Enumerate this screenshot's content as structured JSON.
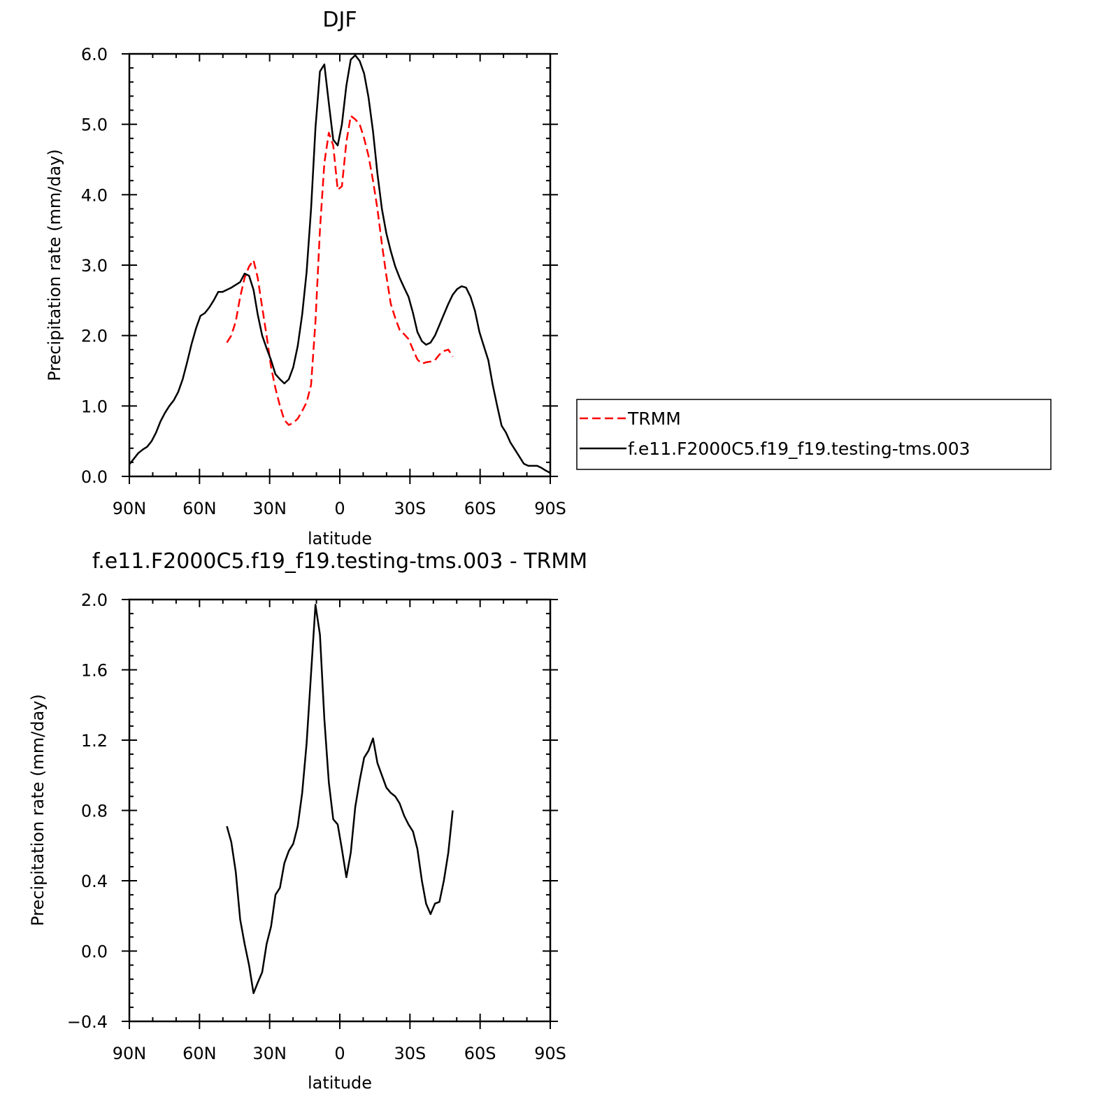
{
  "chart_data": [
    {
      "type": "line",
      "title": "DJF",
      "xlabel": "latitude",
      "ylabel": "Precipitation rate (mm/day)",
      "xlim": [
        -90,
        90
      ],
      "ylim": [
        0,
        6
      ],
      "x_ticks": [
        -90,
        -60,
        -30,
        0,
        30,
        60,
        90
      ],
      "x_tick_labels": [
        "90N",
        "60N",
        "30N",
        "0",
        "30S",
        "60S",
        "90S"
      ],
      "y_ticks": [
        0,
        1,
        2,
        3,
        4,
        5,
        6
      ],
      "y_tick_labels": [
        "0.0",
        "1.0",
        "2.0",
        "3.0",
        "4.0",
        "5.0",
        "6.0"
      ],
      "legend": "outside-right",
      "series": [
        {
          "name": "TRMM",
          "color": "#ff0000",
          "dash": "dashed",
          "x": [
            -48.3,
            -46.4,
            -44.5,
            -42.6,
            -40.7,
            -38.8,
            -36.9,
            -35.1,
            -33.2,
            -31.3,
            -29.4,
            -27.5,
            -25.6,
            -23.7,
            -21.8,
            -19.9,
            -18,
            -16.1,
            -14.2,
            -12.3,
            -10.4,
            -8.5,
            -6.6,
            -4.7,
            -2.8,
            -0.9,
            0.9,
            2.8,
            4.7,
            6.6,
            8.5,
            10.4,
            12.3,
            14.2,
            16.1,
            18,
            19.9,
            21.8,
            23.7,
            25.6,
            27.5,
            29.4,
            31.3,
            33.2,
            35.1,
            36.9,
            38.8,
            40.7,
            42.6,
            44.5,
            46.4,
            48.3
          ],
          "y": [
            1.9,
            2.0,
            2.2,
            2.55,
            2.82,
            2.98,
            3.07,
            2.82,
            2.4,
            2.0,
            1.55,
            1.25,
            1.0,
            0.8,
            0.73,
            0.76,
            0.82,
            0.93,
            1.05,
            1.3,
            2.2,
            3.5,
            4.45,
            4.88,
            4.7,
            4.07,
            4.12,
            4.75,
            5.12,
            5.07,
            5.0,
            4.8,
            4.55,
            4.2,
            3.8,
            3.3,
            2.85,
            2.45,
            2.25,
            2.08,
            2.02,
            1.95,
            1.8,
            1.66,
            1.6,
            1.62,
            1.63,
            1.65,
            1.73,
            1.78,
            1.8,
            1.7
          ]
        },
        {
          "name": "f.e11.F2000C5.f19_f19.testing-tms.003",
          "color": "#000000",
          "dash": "solid",
          "x": [
            -90,
            -88.1,
            -86.2,
            -84.3,
            -82.4,
            -80.5,
            -78.6,
            -76.7,
            -74.8,
            -72.9,
            -71,
            -69.1,
            -67.2,
            -65.3,
            -63.4,
            -61.5,
            -59.6,
            -57.7,
            -55.8,
            -53.9,
            -52,
            -50.1,
            -48.3,
            -46.4,
            -44.5,
            -42.6,
            -40.7,
            -38.8,
            -36.9,
            -35.1,
            -33.2,
            -31.3,
            -29.4,
            -27.5,
            -25.6,
            -23.7,
            -21.8,
            -19.9,
            -18,
            -16.1,
            -14.2,
            -12.3,
            -10.4,
            -8.5,
            -6.6,
            -4.7,
            -2.8,
            -0.9,
            0.9,
            2.8,
            4.7,
            6.6,
            8.5,
            10.4,
            12.3,
            14.2,
            16.1,
            18,
            19.9,
            21.8,
            23.7,
            25.6,
            27.5,
            29.4,
            31.3,
            33.2,
            35.1,
            36.9,
            38.8,
            40.7,
            42.6,
            44.5,
            46.4,
            48.3,
            50.2,
            52.1,
            54,
            55.9,
            57.8,
            59.7,
            61.6,
            63.5,
            65.4,
            67.3,
            69.2,
            71.1,
            73,
            74.9,
            76.8,
            78.7,
            80.6,
            82.5,
            84.4,
            86.3,
            88.2,
            90
          ],
          "y": [
            0.17,
            0.25,
            0.33,
            0.38,
            0.42,
            0.5,
            0.62,
            0.78,
            0.9,
            1.0,
            1.08,
            1.2,
            1.38,
            1.62,
            1.88,
            2.1,
            2.28,
            2.32,
            2.4,
            2.5,
            2.62,
            2.62,
            2.65,
            2.68,
            2.72,
            2.76,
            2.88,
            2.85,
            2.65,
            2.3,
            2.0,
            1.82,
            1.65,
            1.45,
            1.38,
            1.32,
            1.38,
            1.55,
            1.85,
            2.3,
            2.9,
            3.8,
            4.95,
            5.75,
            5.85,
            5.3,
            4.78,
            4.7,
            5.0,
            5.55,
            5.92,
            5.98,
            5.9,
            5.72,
            5.38,
            4.9,
            4.3,
            3.8,
            3.45,
            3.2,
            2.98,
            2.82,
            2.68,
            2.55,
            2.32,
            2.05,
            1.92,
            1.87,
            1.9,
            2.0,
            2.15,
            2.3,
            2.45,
            2.58,
            2.66,
            2.7,
            2.68,
            2.55,
            2.35,
            2.05,
            1.85,
            1.65,
            1.3,
            1.0,
            0.72,
            0.62,
            0.48,
            0.38,
            0.28,
            0.18,
            0.15,
            0.15,
            0.15,
            0.12,
            0.08,
            0.05
          ]
        }
      ]
    },
    {
      "type": "line",
      "title": "f.e11.F2000C5.f19_f19.testing-tms.003 - TRMM",
      "xlabel": "latitude",
      "ylabel": "Precipitation rate (mm/day)",
      "xlim": [
        -90,
        90
      ],
      "ylim": [
        -0.4,
        2.0
      ],
      "x_ticks": [
        -90,
        -60,
        -30,
        0,
        30,
        60,
        90
      ],
      "x_tick_labels": [
        "90N",
        "60N",
        "30N",
        "0",
        "30S",
        "60S",
        "90S"
      ],
      "y_ticks": [
        -0.4,
        0,
        0.4,
        0.8,
        1.2,
        1.6,
        2.0
      ],
      "y_tick_labels": [
        "−0.4",
        "0.0",
        "0.4",
        "0.8",
        "1.2",
        "1.6",
        "2.0"
      ],
      "series": [
        {
          "color": "#000000",
          "dash": "solid",
          "x": [
            -48.3,
            -46.4,
            -44.5,
            -42.6,
            -40.7,
            -38.8,
            -36.9,
            -35.1,
            -33.2,
            -31.3,
            -29.4,
            -27.5,
            -25.6,
            -23.7,
            -21.8,
            -19.9,
            -18,
            -16.1,
            -14.2,
            -12.3,
            -10.4,
            -8.5,
            -6.6,
            -4.7,
            -2.8,
            -0.9,
            0.9,
            2.8,
            4.7,
            6.6,
            8.5,
            10.4,
            12.3,
            14.2,
            16.1,
            18,
            19.9,
            21.8,
            23.7,
            25.6,
            27.5,
            29.4,
            31.3,
            33.2,
            35.1,
            36.9,
            38.8,
            40.7,
            42.6,
            44.5,
            46.4,
            48.3
          ],
          "y": [
            0.71,
            0.62,
            0.45,
            0.18,
            0.04,
            -0.08,
            -0.24,
            -0.18,
            -0.12,
            0.04,
            0.14,
            0.32,
            0.36,
            0.5,
            0.57,
            0.61,
            0.71,
            0.9,
            1.18,
            1.58,
            1.97,
            1.8,
            1.32,
            0.96,
            0.75,
            0.72,
            0.58,
            0.42,
            0.56,
            0.82,
            0.97,
            1.1,
            1.14,
            1.21,
            1.07,
            1.0,
            0.93,
            0.9,
            0.88,
            0.84,
            0.77,
            0.72,
            0.68,
            0.58,
            0.4,
            0.27,
            0.21,
            0.27,
            0.28,
            0.4,
            0.56,
            0.8
          ]
        }
      ]
    }
  ]
}
